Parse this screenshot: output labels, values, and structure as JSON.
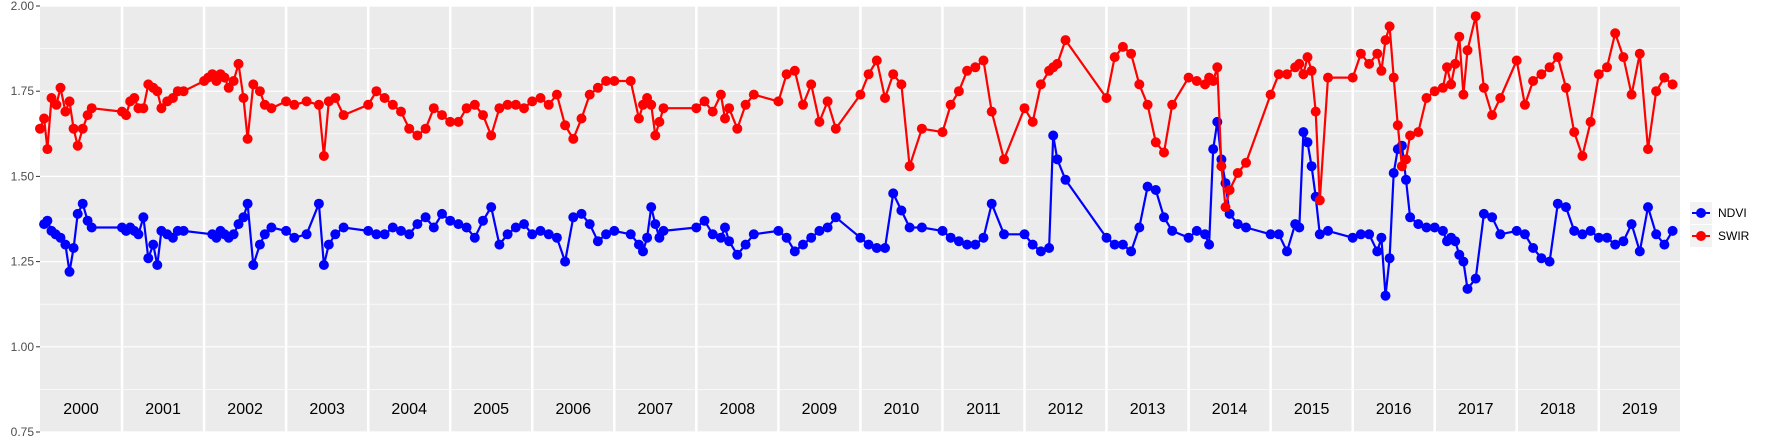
{
  "chart_data": {
    "type": "line",
    "xlim": [
      2000,
      2019.99
    ],
    "ylim": [
      0.75,
      2.0
    ],
    "y_ticks": [
      "0.75",
      "1.00",
      "1.25",
      "1.50",
      "1.75",
      "2.00"
    ],
    "y_tick_values": [
      0.75,
      1.0,
      1.25,
      1.5,
      1.75,
      2.0
    ],
    "years": [
      "2000",
      "2001",
      "2002",
      "2003",
      "2004",
      "2005",
      "2006",
      "2007",
      "2008",
      "2009",
      "2010",
      "2011",
      "2012",
      "2013",
      "2014",
      "2015",
      "2016",
      "2017",
      "2018",
      "2019"
    ],
    "grid": true,
    "legend_position": "right",
    "series": [
      {
        "name": "NDVI",
        "color": "#0000ff",
        "x": [
          2000.05,
          2000.09,
          2000.14,
          2000.19,
          2000.25,
          2000.31,
          2000.36,
          2000.41,
          2000.46,
          2000.52,
          2000.58,
          2000.63,
          2001.0,
          2001.05,
          2001.1,
          2001.15,
          2001.2,
          2001.26,
          2001.32,
          2001.38,
          2001.43,
          2001.48,
          2001.55,
          2001.62,
          2001.68,
          2001.75,
          2002.1,
          2002.15,
          2002.2,
          2002.25,
          2002.3,
          2002.36,
          2002.42,
          2002.48,
          2002.53,
          2002.6,
          2002.68,
          2002.74,
          2002.82,
          2003.0,
          2003.1,
          2003.25,
          2003.4,
          2003.46,
          2003.52,
          2003.6,
          2003.7,
          2004.0,
          2004.1,
          2004.2,
          2004.3,
          2004.4,
          2004.5,
          2004.6,
          2004.7,
          2004.8,
          2004.9,
          2005.0,
          2005.1,
          2005.2,
          2005.3,
          2005.4,
          2005.5,
          2005.6,
          2005.7,
          2005.8,
          2005.9,
          2006.0,
          2006.1,
          2006.2,
          2006.3,
          2006.4,
          2006.5,
          2006.6,
          2006.7,
          2006.8,
          2006.9,
          2007.0,
          2007.2,
          2007.3,
          2007.35,
          2007.4,
          2007.45,
          2007.5,
          2007.55,
          2007.6,
          2008.0,
          2008.1,
          2008.2,
          2008.3,
          2008.35,
          2008.4,
          2008.5,
          2008.6,
          2008.7,
          2009.0,
          2009.1,
          2009.2,
          2009.3,
          2009.4,
          2009.5,
          2009.6,
          2009.7,
          2010.0,
          2010.1,
          2010.2,
          2010.3,
          2010.4,
          2010.5,
          2010.6,
          2010.75,
          2011.0,
          2011.1,
          2011.2,
          2011.3,
          2011.4,
          2011.5,
          2011.6,
          2011.75,
          2012.0,
          2012.1,
          2012.2,
          2012.3,
          2012.35,
          2012.4,
          2012.5,
          2013.0,
          2013.1,
          2013.2,
          2013.3,
          2013.4,
          2013.5,
          2013.6,
          2013.7,
          2013.8,
          2014.0,
          2014.1,
          2014.2,
          2014.25,
          2014.3,
          2014.35,
          2014.4,
          2014.45,
          2014.5,
          2014.6,
          2014.7,
          2015.0,
          2015.1,
          2015.2,
          2015.3,
          2015.35,
          2015.4,
          2015.45,
          2015.5,
          2015.55,
          2015.6,
          2015.7,
          2016.0,
          2016.1,
          2016.2,
          2016.3,
          2016.35,
          2016.4,
          2016.45,
          2016.5,
          2016.55,
          2016.6,
          2016.65,
          2016.7,
          2016.8,
          2016.9,
          2017.0,
          2017.1,
          2017.15,
          2017.2,
          2017.25,
          2017.3,
          2017.35,
          2017.4,
          2017.5,
          2017.6,
          2017.7,
          2017.8,
          2018.0,
          2018.1,
          2018.2,
          2018.3,
          2018.4,
          2018.5,
          2018.6,
          2018.7,
          2018.8,
          2018.9,
          2019.0,
          2019.1,
          2019.2,
          2019.3,
          2019.4,
          2019.5,
          2019.6,
          2019.7,
          2019.8,
          2019.9
        ],
        "y": [
          1.36,
          1.37,
          1.34,
          1.33,
          1.32,
          1.3,
          1.22,
          1.29,
          1.39,
          1.42,
          1.37,
          1.35,
          1.35,
          1.34,
          1.35,
          1.34,
          1.33,
          1.38,
          1.26,
          1.3,
          1.24,
          1.34,
          1.33,
          1.32,
          1.34,
          1.34,
          1.33,
          1.32,
          1.34,
          1.33,
          1.32,
          1.33,
          1.36,
          1.38,
          1.42,
          1.24,
          1.3,
          1.33,
          1.35,
          1.34,
          1.32,
          1.33,
          1.42,
          1.24,
          1.3,
          1.33,
          1.35,
          1.34,
          1.33,
          1.33,
          1.35,
          1.34,
          1.33,
          1.36,
          1.38,
          1.35,
          1.39,
          1.37,
          1.36,
          1.35,
          1.32,
          1.37,
          1.41,
          1.3,
          1.33,
          1.35,
          1.36,
          1.33,
          1.34,
          1.33,
          1.32,
          1.25,
          1.38,
          1.39,
          1.36,
          1.31,
          1.33,
          1.34,
          1.33,
          1.3,
          1.28,
          1.32,
          1.41,
          1.36,
          1.32,
          1.34,
          1.35,
          1.37,
          1.33,
          1.32,
          1.35,
          1.31,
          1.27,
          1.3,
          1.33,
          1.34,
          1.32,
          1.28,
          1.3,
          1.32,
          1.34,
          1.35,
          1.38,
          1.32,
          1.3,
          1.29,
          1.29,
          1.45,
          1.4,
          1.35,
          1.35,
          1.34,
          1.32,
          1.31,
          1.3,
          1.3,
          1.32,
          1.42,
          1.33,
          1.33,
          1.3,
          1.28,
          1.29,
          1.62,
          1.55,
          1.49,
          1.32,
          1.3,
          1.3,
          1.28,
          1.35,
          1.47,
          1.46,
          1.38,
          1.34,
          1.32,
          1.34,
          1.33,
          1.3,
          1.58,
          1.66,
          1.55,
          1.48,
          1.39,
          1.36,
          1.35,
          1.33,
          1.33,
          1.28,
          1.36,
          1.35,
          1.63,
          1.6,
          1.53,
          1.44,
          1.33,
          1.34,
          1.32,
          1.33,
          1.33,
          1.28,
          1.32,
          1.15,
          1.26,
          1.51,
          1.58,
          1.59,
          1.49,
          1.38,
          1.36,
          1.35,
          1.35,
          1.34,
          1.31,
          1.32,
          1.31,
          1.27,
          1.25,
          1.17,
          1.2,
          1.39,
          1.38,
          1.33,
          1.34,
          1.33,
          1.29,
          1.26,
          1.25,
          1.42,
          1.41,
          1.34,
          1.33,
          1.34,
          1.32,
          1.32,
          1.3,
          1.31,
          1.36,
          1.28,
          1.41,
          1.33,
          1.3,
          1.34
        ]
      },
      {
        "name": "SWIR",
        "color": "#ff0000",
        "x": [
          2000.0,
          2000.05,
          2000.09,
          2000.14,
          2000.2,
          2000.25,
          2000.31,
          2000.36,
          2000.41,
          2000.46,
          2000.52,
          2000.58,
          2000.63,
          2001.0,
          2001.05,
          2001.1,
          2001.15,
          2001.2,
          2001.26,
          2001.32,
          2001.38,
          2001.43,
          2001.48,
          2001.55,
          2001.62,
          2001.68,
          2001.75,
          2002.0,
          2002.05,
          2002.1,
          2002.15,
          2002.2,
          2002.25,
          2002.3,
          2002.36,
          2002.42,
          2002.48,
          2002.53,
          2002.6,
          2002.68,
          2002.74,
          2002.82,
          2003.0,
          2003.1,
          2003.25,
          2003.4,
          2003.46,
          2003.52,
          2003.6,
          2003.7,
          2004.0,
          2004.1,
          2004.2,
          2004.3,
          2004.4,
          2004.5,
          2004.6,
          2004.7,
          2004.8,
          2004.9,
          2005.0,
          2005.1,
          2005.2,
          2005.3,
          2005.4,
          2005.5,
          2005.6,
          2005.7,
          2005.8,
          2005.9,
          2006.0,
          2006.1,
          2006.2,
          2006.3,
          2006.4,
          2006.5,
          2006.6,
          2006.7,
          2006.8,
          2006.9,
          2007.0,
          2007.2,
          2007.3,
          2007.35,
          2007.4,
          2007.45,
          2007.5,
          2007.55,
          2007.6,
          2008.0,
          2008.1,
          2008.2,
          2008.3,
          2008.35,
          2008.4,
          2008.5,
          2008.6,
          2008.7,
          2009.0,
          2009.1,
          2009.2,
          2009.3,
          2009.4,
          2009.5,
          2009.6,
          2009.7,
          2010.0,
          2010.1,
          2010.2,
          2010.3,
          2010.4,
          2010.5,
          2010.6,
          2010.75,
          2011.0,
          2011.1,
          2011.2,
          2011.3,
          2011.4,
          2011.5,
          2011.6,
          2011.75,
          2012.0,
          2012.1,
          2012.2,
          2012.3,
          2012.35,
          2012.4,
          2012.5,
          2013.0,
          2013.1,
          2013.2,
          2013.3,
          2013.4,
          2013.5,
          2013.6,
          2013.7,
          2013.8,
          2014.0,
          2014.1,
          2014.2,
          2014.25,
          2014.3,
          2014.35,
          2014.4,
          2014.45,
          2014.5,
          2014.6,
          2014.7,
          2015.0,
          2015.1,
          2015.2,
          2015.3,
          2015.35,
          2015.4,
          2015.45,
          2015.5,
          2015.55,
          2015.6,
          2015.7,
          2016.0,
          2016.1,
          2016.2,
          2016.3,
          2016.35,
          2016.4,
          2016.45,
          2016.5,
          2016.55,
          2016.6,
          2016.65,
          2016.7,
          2016.8,
          2016.9,
          2017.0,
          2017.1,
          2017.15,
          2017.2,
          2017.25,
          2017.3,
          2017.35,
          2017.4,
          2017.5,
          2017.6,
          2017.7,
          2017.8,
          2018.0,
          2018.1,
          2018.2,
          2018.3,
          2018.4,
          2018.5,
          2018.6,
          2018.7,
          2018.8,
          2018.9,
          2019.0,
          2019.1,
          2019.2,
          2019.3,
          2019.4,
          2019.5,
          2019.6,
          2019.7,
          2019.8,
          2019.9
        ],
        "y": [
          1.64,
          1.67,
          1.58,
          1.73,
          1.71,
          1.76,
          1.69,
          1.72,
          1.64,
          1.59,
          1.64,
          1.68,
          1.7,
          1.69,
          1.68,
          1.72,
          1.73,
          1.7,
          1.7,
          1.77,
          1.76,
          1.75,
          1.7,
          1.72,
          1.73,
          1.75,
          1.75,
          1.78,
          1.79,
          1.8,
          1.78,
          1.8,
          1.79,
          1.76,
          1.78,
          1.83,
          1.73,
          1.61,
          1.77,
          1.75,
          1.71,
          1.7,
          1.72,
          1.71,
          1.72,
          1.71,
          1.56,
          1.72,
          1.73,
          1.68,
          1.71,
          1.75,
          1.73,
          1.71,
          1.69,
          1.64,
          1.62,
          1.64,
          1.7,
          1.68,
          1.66,
          1.66,
          1.7,
          1.71,
          1.68,
          1.62,
          1.7,
          1.71,
          1.71,
          1.7,
          1.72,
          1.73,
          1.71,
          1.74,
          1.65,
          1.61,
          1.67,
          1.74,
          1.76,
          1.78,
          1.78,
          1.78,
          1.67,
          1.71,
          1.73,
          1.71,
          1.62,
          1.66,
          1.7,
          1.7,
          1.72,
          1.69,
          1.74,
          1.67,
          1.7,
          1.64,
          1.71,
          1.74,
          1.72,
          1.8,
          1.81,
          1.71,
          1.77,
          1.66,
          1.72,
          1.64,
          1.74,
          1.8,
          1.84,
          1.73,
          1.8,
          1.77,
          1.53,
          1.64,
          1.63,
          1.71,
          1.75,
          1.81,
          1.82,
          1.84,
          1.69,
          1.55,
          1.7,
          1.66,
          1.77,
          1.81,
          1.82,
          1.83,
          1.9,
          1.73,
          1.85,
          1.88,
          1.86,
          1.77,
          1.71,
          1.6,
          1.57,
          1.71,
          1.79,
          1.78,
          1.77,
          1.79,
          1.78,
          1.82,
          1.53,
          1.41,
          1.46,
          1.51,
          1.54,
          1.74,
          1.8,
          1.8,
          1.82,
          1.83,
          1.8,
          1.85,
          1.81,
          1.69,
          1.43,
          1.79,
          1.79,
          1.86,
          1.83,
          1.86,
          1.81,
          1.9,
          1.94,
          1.79,
          1.65,
          1.53,
          1.55,
          1.62,
          1.63,
          1.73,
          1.75,
          1.76,
          1.82,
          1.77,
          1.83,
          1.91,
          1.74,
          1.87,
          1.97,
          1.76,
          1.68,
          1.73,
          1.84,
          1.71,
          1.78,
          1.8,
          1.82,
          1.85,
          1.76,
          1.63,
          1.56,
          1.66,
          1.8,
          1.82,
          1.92,
          1.85,
          1.74,
          1.86,
          1.58,
          1.75,
          1.79,
          1.77
        ]
      }
    ]
  }
}
